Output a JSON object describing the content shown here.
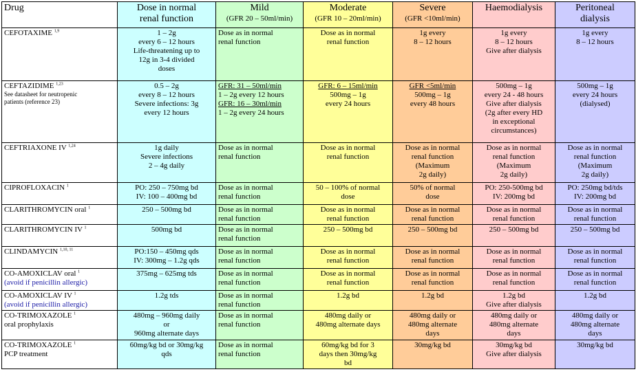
{
  "header": {
    "drug": "Drug",
    "normal": [
      "Dose in normal",
      "renal function"
    ],
    "mild": [
      "Mild",
      "(GFR 20 – 50ml/min)"
    ],
    "moderate": [
      "Moderate",
      "(GFR 10 – 20ml/min)"
    ],
    "severe": [
      "Severe",
      "(GFR <10ml/min)"
    ],
    "hd": [
      "Haemodialysis"
    ],
    "pd": [
      "Peritoneal",
      "dialysis"
    ]
  },
  "colors": {
    "normal": "#ccffff",
    "mild": "#ccffcc",
    "moderate": "#ffff99",
    "severe": "#ffcc99",
    "hd": "#ffcccc",
    "pd": "#ccccff",
    "link_blue": "#1a1aa6"
  },
  "rows": [
    {
      "drug": [
        "CEFOTAXIME"
      ],
      "sup": "1,9",
      "normal": [
        "1 – 2g",
        "every 6 – 12 hours",
        "Life-threatening up to",
        "12g in 3-4 divided",
        "doses"
      ],
      "mild": [
        "Dose as in normal",
        "renal function"
      ],
      "moderate": [
        "Dose as in normal",
        "renal function"
      ],
      "severe": [
        "1g every",
        "8 – 12 hours"
      ],
      "hd": [
        "1g every",
        "8 – 12 hours",
        "Give after dialysis"
      ],
      "pd": [
        "1g every",
        "8 – 12 hours"
      ]
    },
    {
      "drug": [
        "CEFTAZIDIME"
      ],
      "sup": "1,23",
      "note": [
        "See datasheet for neutropenic",
        "patients (reference 23)"
      ],
      "normal": [
        "0.5 – 2g",
        "every 8 – 12 hours",
        "Severe infections: 3g",
        "every 12 hours"
      ],
      "mild": [
        "GFR: 31 – 50ml/min",
        "1 – 2g every 12 hours",
        "GFR: 16 – 30ml/min",
        "1 – 2g every 24 hours"
      ],
      "moderate": [
        "GFR: 6 – 15ml/min",
        "500mg – 1g",
        "every 24 hours"
      ],
      "severe": [
        "GFR <5ml/min",
        "500mg – 1g",
        "every 48 hours"
      ],
      "hd": [
        "500mg – 1g",
        "every 24 - 48 hours",
        "Give after dialysis",
        "(2g after every HD",
        "in exceptional",
        "circumstances)"
      ],
      "pd": [
        "500mg – 1g",
        "every 24 hours",
        "(dialysed)"
      ]
    },
    {
      "drug": [
        "CEFTRIAXONE IV"
      ],
      "sup": "1,24",
      "normal": [
        "1g daily",
        "Severe infections",
        "2 – 4g daily"
      ],
      "mild": [
        "Dose as in normal",
        "renal function"
      ],
      "moderate": [
        "Dose as in normal",
        "renal function"
      ],
      "severe": [
        "Dose as in normal",
        "renal function",
        "(Maximum",
        "2g daily)"
      ],
      "hd": [
        "Dose as in normal",
        "renal function",
        "(Maximum",
        "2g daily)"
      ],
      "pd": [
        "Dose as in normal",
        "renal function",
        "(Maximum",
        "2g daily)"
      ]
    },
    {
      "drug": [
        "CIPROFLOXACIN"
      ],
      "sup": "1",
      "normal": [
        "PO: 250 – 750mg bd",
        "IV: 100 – 400mg bd"
      ],
      "mild": [
        "Dose as in normal",
        "renal function"
      ],
      "moderate": [
        "50 – 100% of normal",
        "dose"
      ],
      "severe": [
        "50% of normal",
        "dose"
      ],
      "hd": [
        "PO: 250-500mg bd",
        "IV: 200mg bd"
      ],
      "pd": [
        "PO: 250mg bd/tds",
        "IV: 200mg bd"
      ]
    },
    {
      "drug": [
        "CLARITHROMYCIN oral"
      ],
      "sup": "1",
      "normal": [
        "250 – 500mg bd"
      ],
      "mild": [
        "Dose as in normal",
        "renal function"
      ],
      "moderate": [
        "Dose as in normal",
        "renal function"
      ],
      "severe": [
        "Dose as in normal",
        "renal function"
      ],
      "hd": [
        "Dose as in normal",
        "renal function"
      ],
      "pd": [
        "Dose as in normal",
        "renal function"
      ]
    },
    {
      "drug": [
        "CLARITHROMYCIN IV"
      ],
      "sup": "1",
      "normal": [
        "500mg bd"
      ],
      "mild": [
        "Dose as in normal",
        "renal function"
      ],
      "moderate": [
        "250 – 500mg bd"
      ],
      "severe": [
        "250 – 500mg bd"
      ],
      "hd": [
        "250 – 500mg bd"
      ],
      "pd": [
        "250 – 500mg bd"
      ]
    },
    {
      "drug": [
        "CLINDAMYCIN"
      ],
      "sup": "1,10, 11",
      "normal": [
        "PO:150 – 450mg qds",
        "IV: 300mg – 1.2g qds"
      ],
      "mild": [
        "Dose as in normal",
        "renal function"
      ],
      "moderate": [
        "Dose as in normal",
        "renal function"
      ],
      "severe": [
        "Dose as in normal",
        "renal function"
      ],
      "hd": [
        "Dose as in normal",
        "renal function"
      ],
      "pd": [
        "Dose as in normal",
        "renal function"
      ]
    },
    {
      "drug": [
        "CO-AMOXICLAV oral"
      ],
      "sup": "1",
      "blue": "(avoid if penicillin allergic)",
      "normal": [
        "375mg – 625mg tds"
      ],
      "mild": [
        "Dose as in normal",
        "renal function"
      ],
      "moderate": [
        "Dose as in normal",
        "renal function"
      ],
      "severe": [
        "Dose as in normal",
        "renal function"
      ],
      "hd": [
        "Dose as in normal",
        "renal function"
      ],
      "pd": [
        "Dose as in normal",
        "renal function"
      ]
    },
    {
      "drug": [
        "CO-AMOXICLAV IV"
      ],
      "sup": "1",
      "blue": "(avoid if penicillin allergic)",
      "normal": [
        "1.2g tds"
      ],
      "mild": [
        "Dose as in normal",
        "renal function"
      ],
      "moderate": [
        "1.2g bd"
      ],
      "severe": [
        "1.2g bd"
      ],
      "hd": [
        "1.2g bd",
        "Give after dialysis"
      ],
      "pd": [
        "1.2g bd"
      ]
    },
    {
      "drug": [
        "CO-TRIMOXAZOLE",
        "oral prophylaxis"
      ],
      "sup": "1",
      "normal": [
        "480mg – 960mg daily",
        "or",
        "960mg alternate days"
      ],
      "mild": [
        "Dose as in normal",
        "renal function"
      ],
      "moderate": [
        "480mg daily or",
        "480mg alternate days"
      ],
      "severe": [
        "480mg daily or",
        "480mg alternate",
        "days"
      ],
      "hd": [
        "480mg daily or",
        "480mg alternate",
        "days"
      ],
      "pd": [
        "480mg daily or",
        "480mg alternate",
        "days"
      ]
    },
    {
      "drug": [
        "CO-TRIMOXAZOLE",
        "PCP treatment"
      ],
      "sup": "1",
      "normal": [
        "60mg/kg bd or 30mg/kg",
        "qds"
      ],
      "mild": [
        "Dose as in normal",
        "renal function"
      ],
      "moderate": [
        "60mg/kg bd for 3",
        "days then 30mg/kg",
        "bd"
      ],
      "severe": [
        "30mg/kg bd"
      ],
      "hd": [
        "30mg/kg bd",
        "Give after dialysis"
      ],
      "pd": [
        "30mg/kg bd"
      ]
    }
  ]
}
